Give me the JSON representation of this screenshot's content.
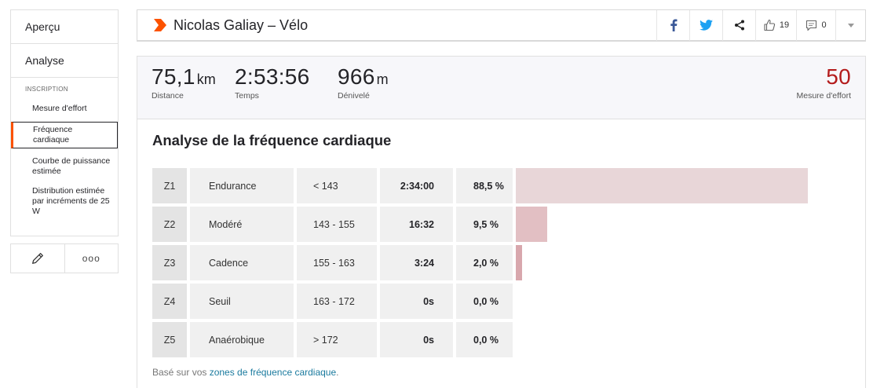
{
  "sidebar": {
    "overview": "Aperçu",
    "analysis": "Analyse",
    "section_label": "INSCRIPTION",
    "items": [
      {
        "label": "Mesure d'effort"
      },
      {
        "label": "Fréquence cardiaque",
        "active": true
      },
      {
        "label": "Courbe de puissance estimée"
      },
      {
        "label": "Distribution estimée par incréments de 25 W"
      }
    ],
    "edit_icon": "pencil-icon",
    "more_icon": "more-dots-icon",
    "more_label": "ooo"
  },
  "header": {
    "title": "Nicolas Galiay – Vélo",
    "kudos_count": "19",
    "comments_count": "0",
    "brand_color": "#fc5200",
    "facebook_color": "#3b5998",
    "twitter_color": "#1da1f2"
  },
  "stats": {
    "distance": {
      "value": "75,1",
      "unit": "km",
      "label": "Distance"
    },
    "time": {
      "value": "2:53:56",
      "unit": "",
      "label": "Temps"
    },
    "elevation": {
      "value": "966",
      "unit": "m",
      "label": "Dénivelé"
    },
    "effort": {
      "value": "50",
      "label": "Mesure d'effort",
      "color": "#b41c1c"
    }
  },
  "analysis": {
    "title": "Analyse de la fréquence cardiaque",
    "zones": [
      {
        "code": "Z1",
        "name": "Endurance",
        "range": "< 143",
        "time": "2:34:00",
        "pct": "88,5 %",
        "fraction": 0.885,
        "color": "#e8d6d8"
      },
      {
        "code": "Z2",
        "name": "Modéré",
        "range": "143 - 155",
        "time": "16:32",
        "pct": "9,5 %",
        "fraction": 0.095,
        "color": "#e2bfc3"
      },
      {
        "code": "Z3",
        "name": "Cadence",
        "range": "155 - 163",
        "time": "3:24",
        "pct": "2,0 %",
        "fraction": 0.02,
        "color": "#d8a7ad"
      },
      {
        "code": "Z4",
        "name": "Seuil",
        "range": "163 - 172",
        "time": "0s",
        "pct": "0,0 %",
        "fraction": 0.0,
        "color": "#cc8c94"
      },
      {
        "code": "Z5",
        "name": "Anaérobique",
        "range": "> 172",
        "time": "0s",
        "pct": "0,0 %",
        "fraction": 0.0,
        "color": "#bd6f79"
      }
    ],
    "footnote_prefix": "Basé sur vos ",
    "footnote_link": "zones de fréquence cardiaque",
    "footnote_suffix": "."
  }
}
